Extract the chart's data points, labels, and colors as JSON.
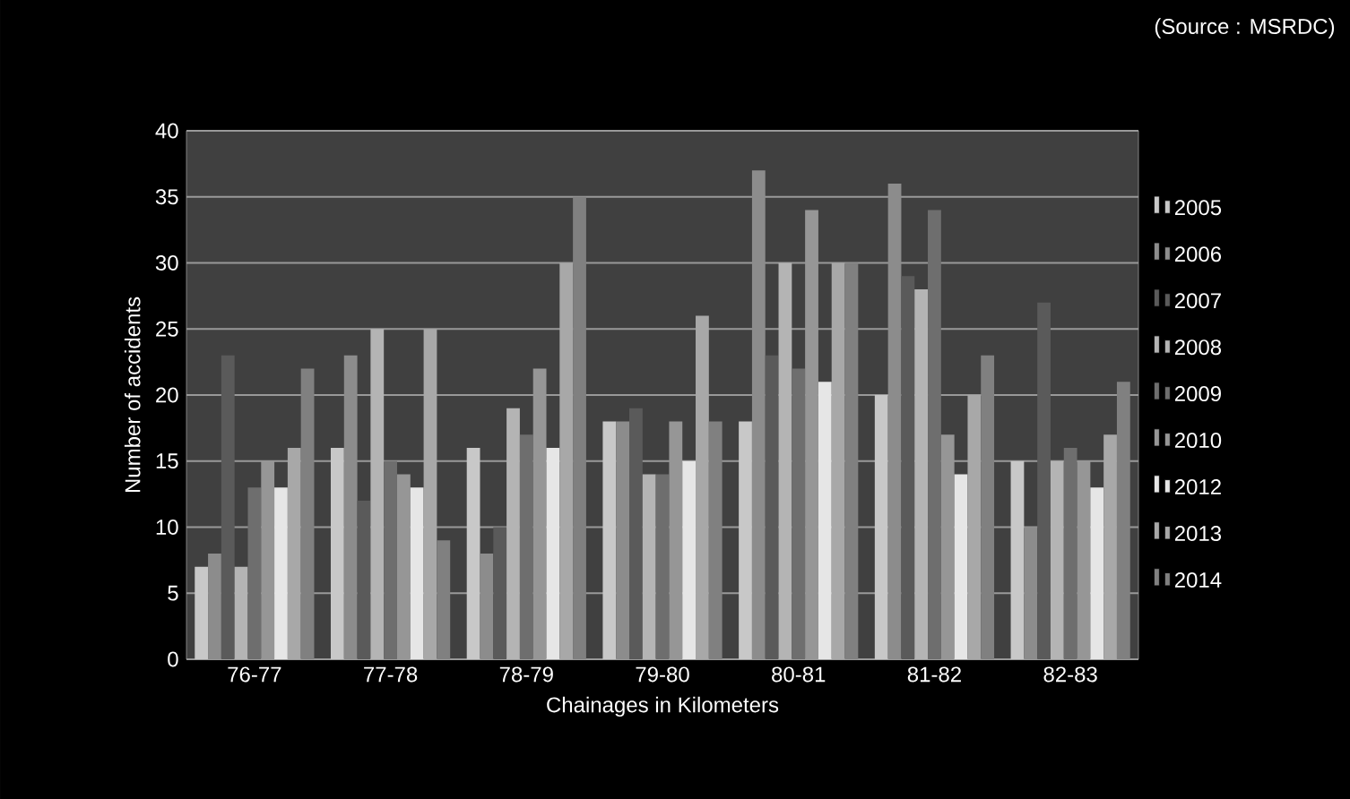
{
  "chart_data": {
    "type": "bar",
    "xlabel": "Chainages in Kilometers",
    "ylabel": "Number of accidents",
    "annotations": [
      "(Source : MSRDC)"
    ],
    "categories": [
      "76-77",
      "77-78",
      "78-79",
      "79-80",
      "80-81",
      "81-82",
      "82-83"
    ],
    "series": [
      {
        "name": "2005",
        "color": "#c8c8c8",
        "values": [
          7,
          16,
          16,
          18,
          18,
          20,
          15
        ]
      },
      {
        "name": "2006",
        "color": "#8c8c8c",
        "values": [
          8,
          23,
          8,
          18,
          37,
          36,
          10
        ]
      },
      {
        "name": "2007",
        "color": "#5a5a5a",
        "values": [
          23,
          12,
          10,
          19,
          23,
          29,
          27
        ]
      },
      {
        "name": "2008",
        "color": "#b4b4b4",
        "values": [
          7,
          25,
          19,
          14,
          30,
          28,
          15
        ]
      },
      {
        "name": "2009",
        "color": "#6e6e6e",
        "values": [
          13,
          15,
          17,
          14,
          22,
          34,
          16
        ]
      },
      {
        "name": "2010",
        "color": "#969696",
        "values": [
          15,
          14,
          22,
          18,
          34,
          17,
          15
        ]
      },
      {
        "name": "2012",
        "color": "#e6e6e6",
        "values": [
          13,
          13,
          16,
          15,
          21,
          14,
          13
        ]
      },
      {
        "name": "2013",
        "color": "#a8a8a8",
        "values": [
          16,
          25,
          30,
          26,
          30,
          20,
          17
        ]
      },
      {
        "name": "2014",
        "color": "#808080",
        "values": [
          22,
          9,
          35,
          18,
          30,
          23,
          21
        ]
      }
    ],
    "ylim": [
      0,
      40
    ],
    "yticks": [
      0,
      5,
      10,
      15,
      20,
      25,
      30,
      35,
      40
    ],
    "grid": "y",
    "legend": "right"
  }
}
